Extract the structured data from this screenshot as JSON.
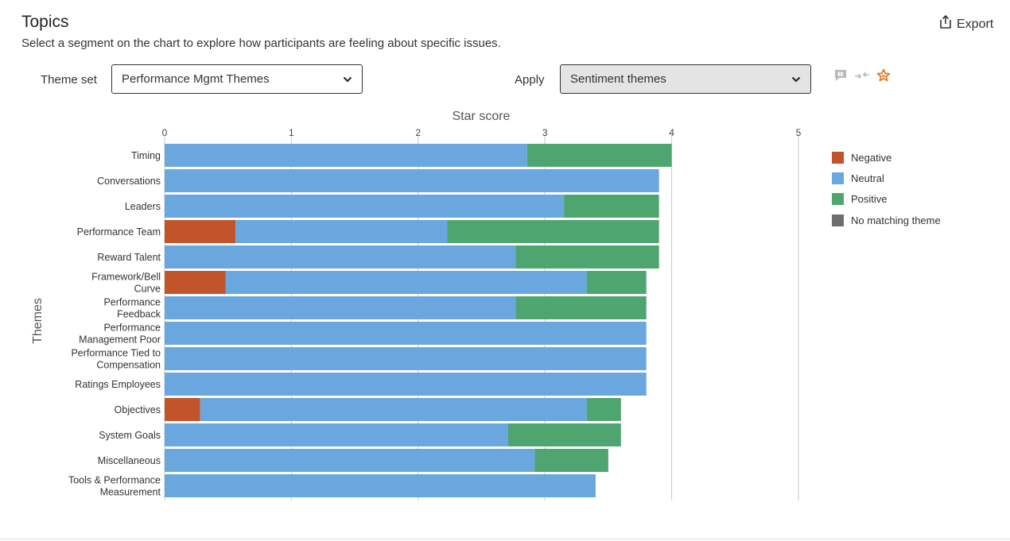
{
  "header": {
    "title": "Topics",
    "subtitle": "Select a segment on the chart to explore how participants are feeling about specific issues.",
    "export_label": "Export"
  },
  "controls": {
    "theme_set_label": "Theme set",
    "theme_set_value": "Performance Mgmt Themes",
    "apply_label": "Apply",
    "apply_value": "Sentiment themes"
  },
  "icons": {
    "export": "share-export-icon",
    "comment": "comment-hash-icon",
    "compare": "compare-arrows-icon",
    "star": "star-icon"
  },
  "colors": {
    "negative": "#c1542a",
    "neutral": "#6aa7de",
    "positive": "#4fa56f",
    "no_match": "#6e6e6e",
    "star_icon": "#e07b2a"
  },
  "chart_data": {
    "type": "bar",
    "orientation": "horizontal",
    "stacked": true,
    "title": "Star score",
    "xlabel": "Star score",
    "ylabel": "Themes",
    "xlim": [
      0,
      5
    ],
    "xticks": [
      "0",
      "1",
      "2",
      "3",
      "4",
      "5"
    ],
    "grid": true,
    "legend_position": "right",
    "categories": [
      [
        "Timing"
      ],
      [
        "Conversations"
      ],
      [
        "Leaders"
      ],
      [
        "Performance Team"
      ],
      [
        "Reward Talent"
      ],
      [
        "Framework/Bell",
        "Curve"
      ],
      [
        "Performance",
        "Feedback"
      ],
      [
        "Performance",
        "Management Poor"
      ],
      [
        "Performance Tied to",
        "Compensation"
      ],
      [
        "Ratings Employees"
      ],
      [
        "Objectives"
      ],
      [
        "System Goals"
      ],
      [
        "Miscellaneous"
      ],
      [
        "Tools & Performance",
        "Measurement"
      ]
    ],
    "series": [
      {
        "name": "Negative",
        "color": "#c1542a",
        "values": [
          0,
          0,
          0,
          0.56,
          0,
          0.48,
          0,
          0,
          0,
          0,
          0.28,
          0,
          0,
          0
        ]
      },
      {
        "name": "Neutral",
        "color": "#6aa7de",
        "values": [
          2.86,
          3.9,
          3.15,
          1.67,
          2.77,
          2.85,
          2.77,
          3.8,
          3.8,
          3.8,
          3.05,
          2.71,
          2.92,
          3.4
        ]
      },
      {
        "name": "Positive",
        "color": "#4fa56f",
        "values": [
          1.14,
          0,
          0.75,
          1.67,
          1.13,
          0.47,
          1.03,
          0,
          0,
          0,
          0.27,
          0.89,
          0.58,
          0
        ]
      },
      {
        "name": "No matching theme",
        "color": "#6e6e6e",
        "values": [
          0,
          0,
          0,
          0,
          0,
          0,
          0,
          0,
          0,
          0,
          0,
          0,
          0,
          0
        ]
      }
    ]
  }
}
